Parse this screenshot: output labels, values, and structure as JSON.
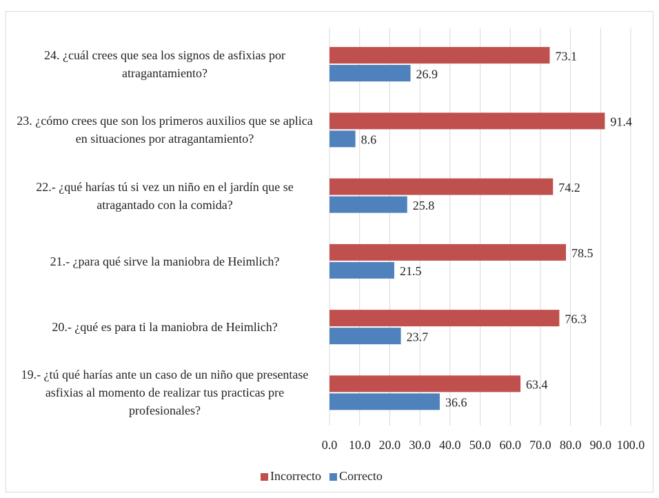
{
  "chart_data": {
    "type": "bar",
    "orientation": "horizontal",
    "categories": [
      "24. ¿cuál crees que sea los signos de asfixias por atragantamiento?",
      "23. ¿cómo crees que son los primeros auxilios que se aplica en situaciones por atragantamiento?",
      "22.- ¿qué harías tú si vez un niño en el jardín que se atragantado con la comida?",
      "21.- ¿para qué sirve la maniobra de Heimlich?",
      "20.- ¿qué es para ti la maniobra de Heimlich?",
      "19.- ¿tú qué harías ante un caso de un niño que presentase asfixias al momento de realizar tus practicas pre profesionales?"
    ],
    "series": [
      {
        "name": "Incorrecto",
        "color": "#c0504d",
        "values": [
          73.1,
          91.4,
          74.2,
          78.5,
          76.3,
          63.4
        ]
      },
      {
        "name": "Correcto",
        "color": "#4f81bd",
        "values": [
          26.9,
          8.6,
          25.8,
          21.5,
          23.7,
          36.6
        ]
      }
    ],
    "xlim": [
      0,
      100
    ],
    "xticks": [
      {
        "value": 0,
        "label": "0.0"
      },
      {
        "value": 10,
        "label": "10.0"
      },
      {
        "value": 20,
        "label": "20.0"
      },
      {
        "value": 30,
        "label": "30.0"
      },
      {
        "value": 40,
        "label": "40.0"
      },
      {
        "value": 50,
        "label": "50.0"
      },
      {
        "value": 60,
        "label": "60.0"
      },
      {
        "value": 70,
        "label": "70.0"
      },
      {
        "value": 80,
        "label": "80.0"
      },
      {
        "value": 90,
        "label": "90.0"
      },
      {
        "value": 100,
        "label": "100.0"
      }
    ],
    "grid": true,
    "legend": "bottom"
  }
}
